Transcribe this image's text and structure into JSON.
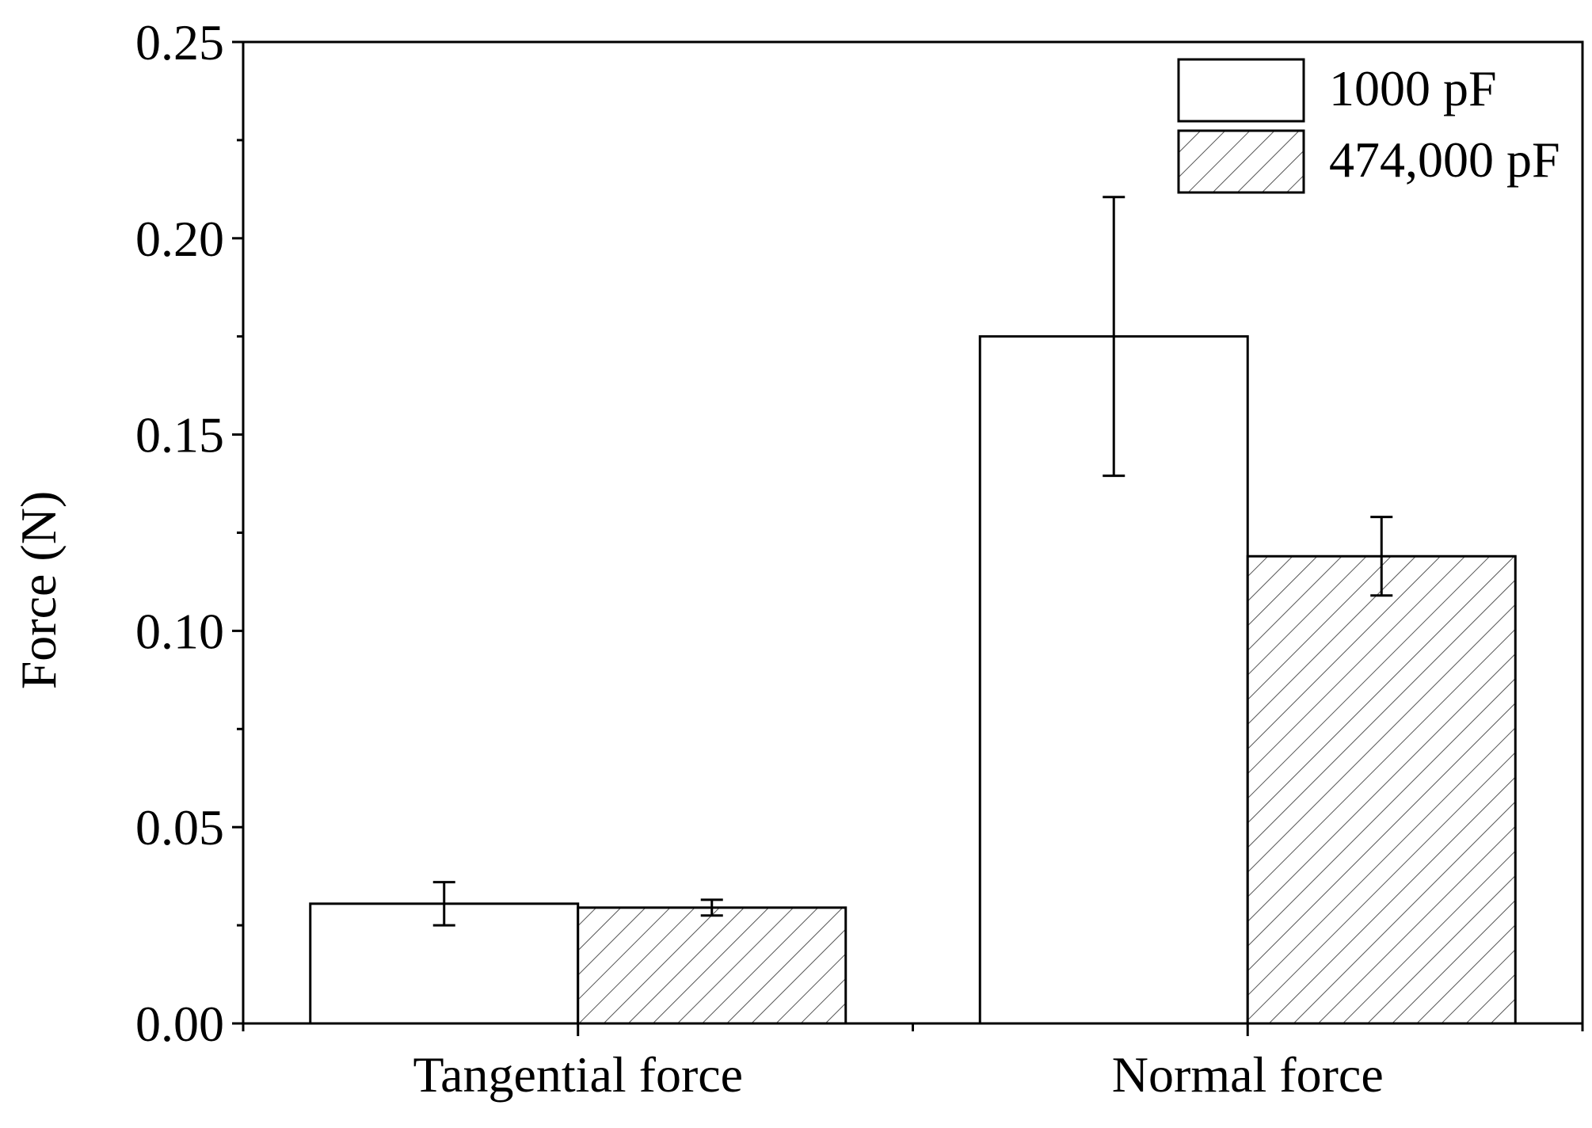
{
  "chart_data": {
    "type": "bar",
    "categories": [
      "Tangential force",
      "Normal force"
    ],
    "series": [
      {
        "name": "1000 pF",
        "values": [
          0.0305,
          0.175
        ],
        "errors": [
          0.0055,
          0.0355
        ],
        "fill": "plain"
      },
      {
        "name": "474,000 pF",
        "values": [
          0.0295,
          0.119
        ],
        "errors": [
          0.002,
          0.01
        ],
        "fill": "hatched"
      }
    ],
    "title": "",
    "xlabel": "",
    "ylabel": "Force (N)",
    "ylim": [
      0,
      0.25
    ],
    "yticks": [
      "0.00",
      "0.05",
      "0.10",
      "0.15",
      "0.20",
      "0.25"
    ],
    "grid": false,
    "legend_position": "top-right",
    "colors": {
      "axis": "#000000",
      "bar_fill": "#ffffff",
      "hatch": "#555555"
    }
  }
}
